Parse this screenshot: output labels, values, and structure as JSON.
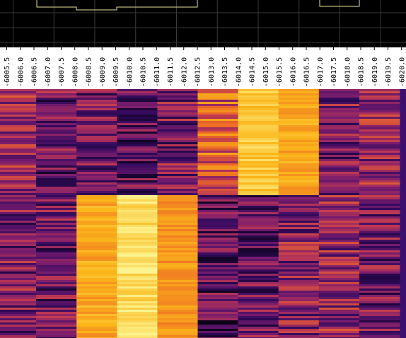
{
  "chart_data": {
    "type": "heatmap",
    "x_tick_labels": [
      "-6005.5",
      "-6006.0",
      "-6006.5",
      "-6007.0",
      "-6007.5",
      "-6008.0",
      "-6008.5",
      "-6009.0",
      "-6009.5",
      "-6010.0",
      "-6010.5",
      "-6011.0",
      "-6011.5",
      "-6012.0",
      "-6012.5",
      "-6013.0",
      "-6013.5",
      "-6014.0",
      "-6014.5",
      "-6015.0",
      "-6015.5",
      "-6016.0",
      "-6016.5",
      "-6017.0",
      "-6017.5",
      "-6018.0",
      "-6018.5",
      "-6019.0",
      "-6019.5",
      "-6020.0"
    ],
    "columns": 10,
    "column_values_upper": [
      0.4,
      0.3,
      0.32,
      0.28,
      0.34,
      0.58,
      0.88,
      0.8,
      0.34,
      0.4
    ],
    "column_values_lower": [
      0.34,
      0.3,
      0.8,
      0.92,
      0.76,
      0.26,
      0.3,
      0.36,
      0.4,
      0.32
    ],
    "colormap": [
      "#000004",
      "#320a5e",
      "#781c6d",
      "#bc3754",
      "#ed6925",
      "#fbb61a",
      "#fcffa4"
    ],
    "top_panel": {
      "background": "#000000",
      "gridline_color": "#3a3a3a",
      "trace_color": "#e8e4a0",
      "trace_steps_upper": [
        0.02,
        0.02,
        0.04,
        0.04,
        0.06,
        0.04,
        0.02,
        0.0,
        0.02,
        0.02
      ],
      "trace2_visible_in": [
        7,
        8
      ]
    },
    "grid": true
  }
}
